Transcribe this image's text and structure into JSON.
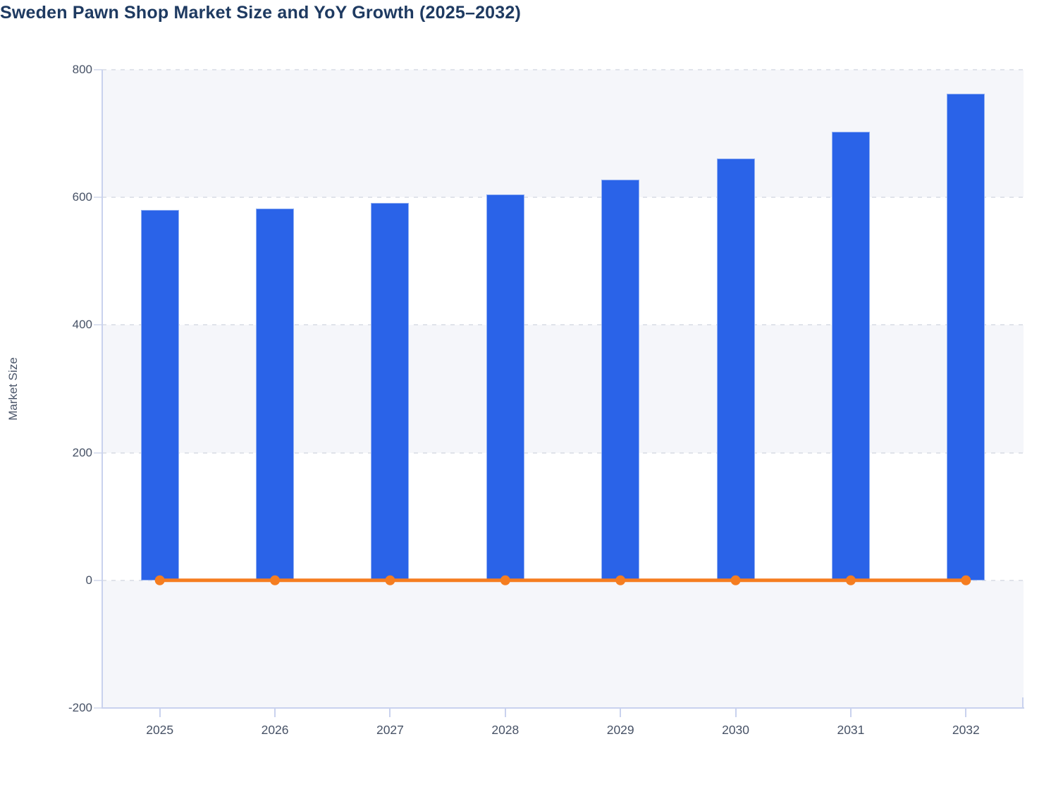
{
  "header": {
    "title": "Sweden Pawn Shop Market Size and YoY Growth (2025–2032)"
  },
  "chart_data": {
    "type": "bar",
    "title": "Sweden Pawn Shop Market Size and YoY Growth (2025–2032)",
    "categories": [
      "2025",
      "2026",
      "2027",
      "2028",
      "2029",
      "2030",
      "2031",
      "2032"
    ],
    "series": [
      {
        "name": "Market Size",
        "chart_type": "bar",
        "color": "#2a63e8",
        "values": [
          580,
          583,
          591,
          605,
          628,
          661,
          703,
          762
        ]
      },
      {
        "name": "YoY Growth",
        "chart_type": "line",
        "color": "#f57d20",
        "marker": "circle",
        "values": [
          0,
          0,
          0,
          0,
          0,
          0,
          0,
          0
        ]
      }
    ],
    "xlabel": "",
    "ylabel": "Market Size",
    "ylim": [
      -200,
      800
    ],
    "yticks": [
      800,
      600,
      400,
      200,
      0,
      -200
    ],
    "grid": "horizontal-dashed",
    "legend_position": "none",
    "plot_background": "alternating horizontal bands #f5f6fa / #ffffff"
  },
  "colors": {
    "title_text": "#1e3a61",
    "axis_line": "#c9d2ee",
    "tick_label": "#475266",
    "gridline": "#e0e3ea",
    "band": "#f5f6fa",
    "bar_fill": "#2a63e8",
    "bar_stroke": "#9eb9f4",
    "line": "#f57d20",
    "page_background": "#ffffff"
  }
}
